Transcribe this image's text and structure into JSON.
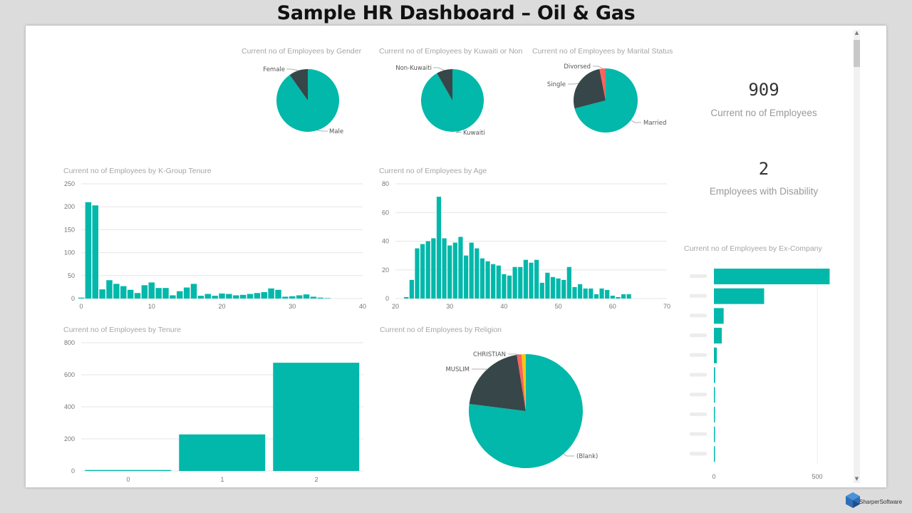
{
  "dashboard": {
    "title": "Sample HR Dashboard – Oil & Gas",
    "logo_text": "SharperSoftware"
  },
  "colors": {
    "teal": "#01b8aa",
    "dark": "#374649",
    "red": "#fd625e",
    "yellow": "#f2c80f"
  },
  "cards": {
    "employees": {
      "value": "909",
      "label": "Current no of Employees"
    },
    "disability": {
      "value": "2",
      "label": "Employees with Disability"
    }
  },
  "chart_data": [
    {
      "id": "gender",
      "type": "pie",
      "title": "Current no of Employees by Gender",
      "slices": [
        {
          "label": "Male",
          "value": 820
        },
        {
          "label": "Female",
          "value": 89
        }
      ]
    },
    {
      "id": "kuwaiti",
      "type": "pie",
      "title": "Current no of Employees by Kuwaiti or Non",
      "slices": [
        {
          "label": "Kuwaiti",
          "value": 834
        },
        {
          "label": "Non-Kuwaiti",
          "value": 75
        }
      ]
    },
    {
      "id": "marital",
      "type": "pie",
      "title": "Current no of Employees by Marital Status",
      "slices": [
        {
          "label": "Married",
          "value": 645
        },
        {
          "label": "Single",
          "value": 236
        },
        {
          "label": "Divorsed",
          "value": 28
        }
      ]
    },
    {
      "id": "kgroup",
      "type": "bar",
      "title": "Current no of Employees by K-Group Tenure",
      "x": [
        0,
        1,
        2,
        3,
        4,
        5,
        6,
        7,
        8,
        9,
        10,
        11,
        12,
        13,
        14,
        15,
        16,
        17,
        18,
        19,
        20,
        21,
        22,
        23,
        24,
        25,
        26,
        27,
        28,
        29,
        30,
        31,
        32,
        33,
        34,
        35
      ],
      "values": [
        2,
        210,
        203,
        20,
        40,
        32,
        27,
        19,
        12,
        29,
        35,
        23,
        23,
        7,
        16,
        24,
        32,
        6,
        10,
        6,
        11,
        10,
        7,
        8,
        10,
        12,
        14,
        22,
        19,
        4,
        5,
        7,
        9,
        4,
        2,
        1
      ],
      "xlim": [
        0,
        40
      ],
      "ylim": [
        0,
        250
      ],
      "xticks": [
        0,
        10,
        20,
        30,
        40
      ],
      "yticks": [
        0,
        50,
        100,
        150,
        200,
        250
      ]
    },
    {
      "id": "age",
      "type": "bar",
      "title": "Current no of Employees by Age",
      "x": [
        22,
        23,
        24,
        25,
        26,
        27,
        28,
        29,
        30,
        31,
        32,
        33,
        34,
        35,
        36,
        37,
        38,
        39,
        40,
        41,
        42,
        43,
        44,
        45,
        46,
        47,
        48,
        49,
        50,
        51,
        52,
        53,
        54,
        55,
        56,
        57,
        58,
        59,
        60,
        61,
        62,
        63
      ],
      "values": [
        1,
        13,
        35,
        38,
        40,
        42,
        71,
        42,
        37,
        39,
        43,
        30,
        39,
        35,
        28,
        26,
        24,
        23,
        17,
        16,
        22,
        22,
        27,
        25,
        27,
        11,
        18,
        15,
        14,
        13,
        22,
        8,
        10,
        7,
        7,
        3,
        7,
        6,
        2,
        1,
        3,
        3
      ],
      "xlim": [
        20,
        70
      ],
      "ylim": [
        0,
        80
      ],
      "xticks": [
        20,
        30,
        40,
        50,
        60,
        70
      ],
      "yticks": [
        0,
        20,
        40,
        60,
        80
      ]
    },
    {
      "id": "tenure",
      "type": "bar",
      "title": "Current no of Employees by Tenure",
      "categories": [
        "0",
        "1",
        "2"
      ],
      "values": [
        6,
        228,
        675
      ],
      "ylim": [
        0,
        800
      ],
      "yticks": [
        0,
        200,
        400,
        600,
        800
      ]
    },
    {
      "id": "religion",
      "type": "pie",
      "title": "Current no of Employees by Religion",
      "slices": [
        {
          "label": "(Blank)",
          "value": 700
        },
        {
          "label": "MUSLIM",
          "value": 186
        },
        {
          "label": "CHRISTIAN",
          "value": 12
        },
        {
          "label": "",
          "value": 11
        }
      ]
    },
    {
      "id": "excompany",
      "type": "bar",
      "orientation": "horizontal",
      "title": "Current no of Employees by Ex-Company",
      "values": [
        560,
        243,
        47,
        38,
        14,
        6,
        5,
        4,
        3,
        3
      ],
      "xlim": [
        0,
        600
      ],
      "xticks": [
        0,
        500
      ]
    }
  ]
}
